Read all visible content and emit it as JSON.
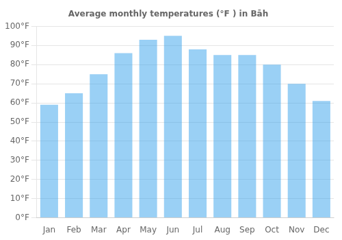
{
  "chart_data": {
    "type": "bar",
    "title": "Average monthly temperatures (°F ) in Bāh",
    "categories": [
      "Jan",
      "Feb",
      "Mar",
      "Apr",
      "May",
      "Jun",
      "Jul",
      "Aug",
      "Sep",
      "Oct",
      "Nov",
      "Dec"
    ],
    "values": [
      59,
      65,
      75,
      86,
      93,
      95,
      88,
      85,
      85,
      80,
      70,
      61
    ],
    "ylim": [
      0,
      100
    ],
    "yticks": [
      {
        "value": 0,
        "label": "0°F"
      },
      {
        "value": 10,
        "label": "10°F"
      },
      {
        "value": 20,
        "label": "20°F"
      },
      {
        "value": 30,
        "label": "30°F"
      },
      {
        "value": 40,
        "label": "40°F"
      },
      {
        "value": 50,
        "label": "50°F"
      },
      {
        "value": 60,
        "label": "60°F"
      },
      {
        "value": 70,
        "label": "70°F"
      },
      {
        "value": 80,
        "label": "80°F"
      },
      {
        "value": 90,
        "label": "90°F"
      },
      {
        "value": 100,
        "label": "100°F"
      }
    ],
    "grid": true
  }
}
